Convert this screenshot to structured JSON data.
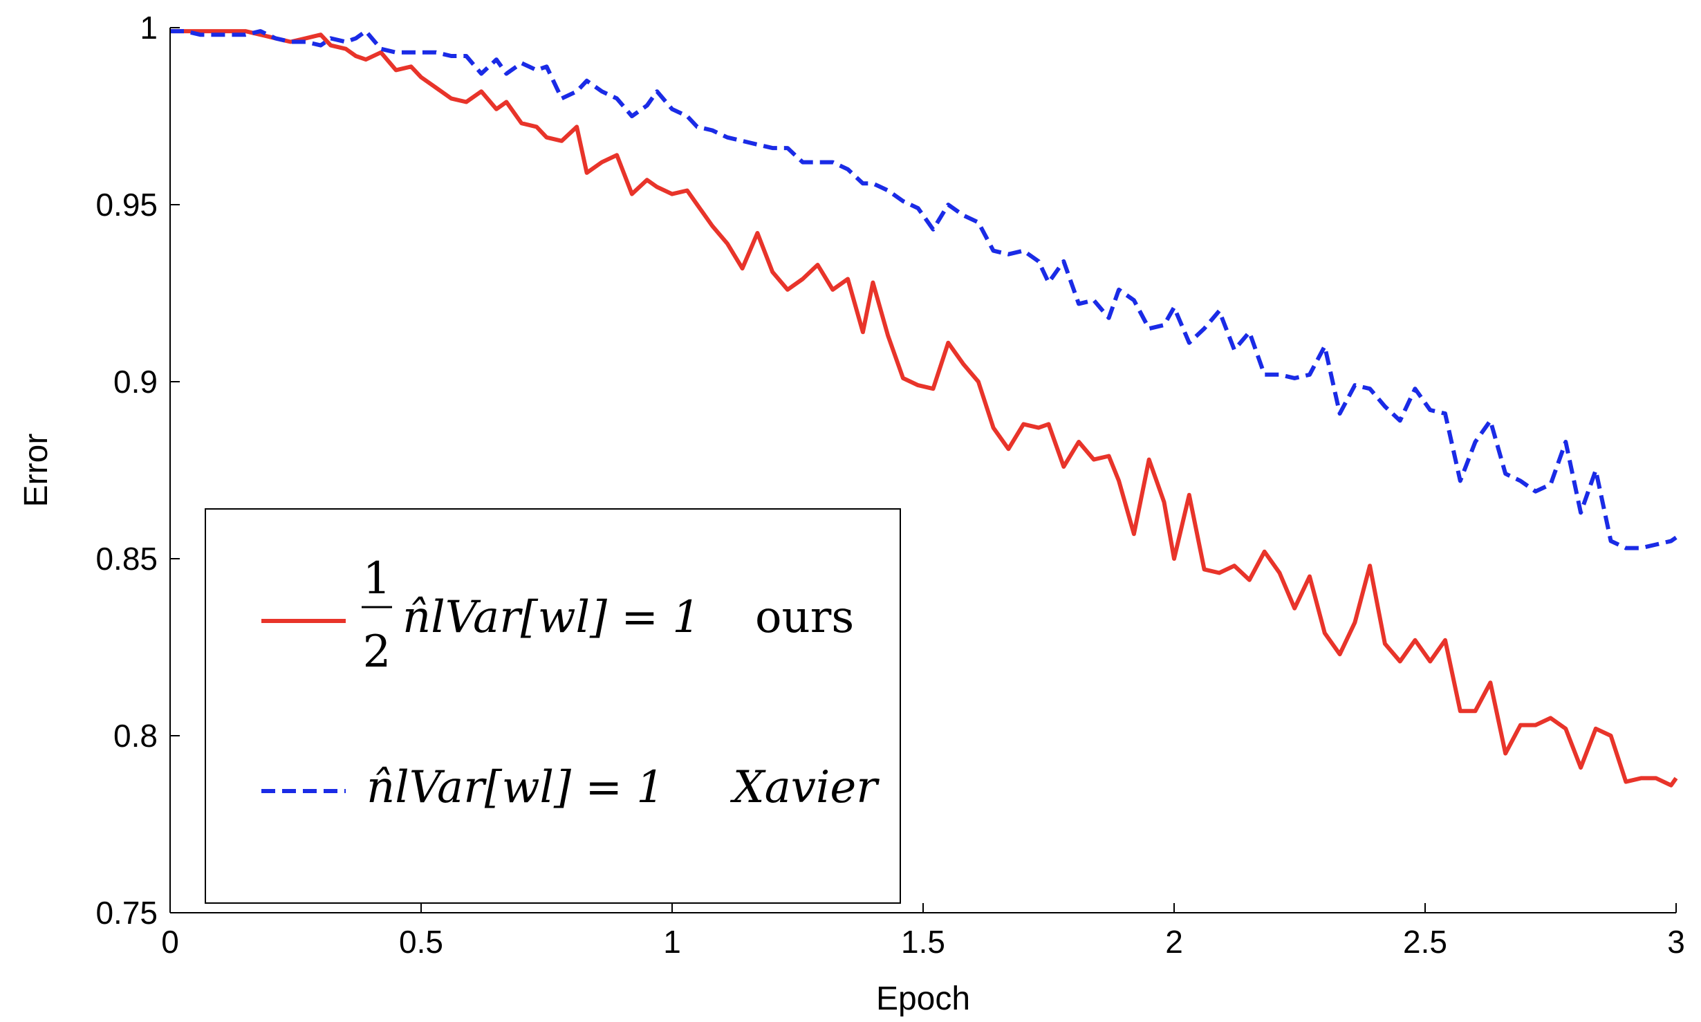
{
  "chart_data": {
    "type": "line",
    "xlabel": "Epoch",
    "ylabel": "Error",
    "xlim": [
      0,
      3
    ],
    "ylim": [
      0.75,
      1
    ],
    "xticks": [
      "0",
      "0.5",
      "1",
      "1.5",
      "2",
      "2.5",
      "3"
    ],
    "yticks": [
      "0.75",
      "0.8",
      "0.85",
      "0.9",
      "0.95",
      "1"
    ],
    "legend_position": "bottom-left",
    "grid": false,
    "series": [
      {
        "name": "1/2 n̂_l Var[w_l] = 1  ours",
        "legend": {
          "frac_num": "1",
          "frac_den": "2",
          "formula": "n̂lVar[wl] = 1",
          "suffix": "ours"
        },
        "color": "#e8342a",
        "dash": "solid",
        "x": [
          0,
          0.03,
          0.06,
          0.09,
          0.12,
          0.15,
          0.18,
          0.21,
          0.24,
          0.27,
          0.3,
          0.32,
          0.35,
          0.37,
          0.39,
          0.42,
          0.45,
          0.48,
          0.5,
          0.53,
          0.56,
          0.59,
          0.62,
          0.65,
          0.67,
          0.7,
          0.73,
          0.75,
          0.78,
          0.81,
          0.83,
          0.86,
          0.89,
          0.92,
          0.95,
          0.97,
          1.0,
          1.03,
          1.05,
          1.08,
          1.11,
          1.14,
          1.17,
          1.2,
          1.23,
          1.26,
          1.29,
          1.32,
          1.35,
          1.38,
          1.4,
          1.43,
          1.46,
          1.49,
          1.52,
          1.55,
          1.58,
          1.61,
          1.64,
          1.67,
          1.7,
          1.73,
          1.75,
          1.78,
          1.81,
          1.84,
          1.87,
          1.89,
          1.92,
          1.95,
          1.98,
          2.0,
          2.03,
          2.06,
          2.09,
          2.12,
          2.15,
          2.18,
          2.21,
          2.24,
          2.27,
          2.3,
          2.33,
          2.36,
          2.39,
          2.42,
          2.45,
          2.48,
          2.51,
          2.54,
          2.57,
          2.6,
          2.63,
          2.66,
          2.69,
          2.72,
          2.75,
          2.78,
          2.81,
          2.84,
          2.87,
          2.9,
          2.93,
          2.96,
          2.99,
          3.0
        ],
        "y": [
          0.999,
          0.999,
          0.999,
          0.999,
          0.999,
          0.999,
          0.998,
          0.997,
          0.996,
          0.997,
          0.998,
          0.995,
          0.994,
          0.992,
          0.991,
          0.993,
          0.988,
          0.989,
          0.986,
          0.983,
          0.98,
          0.979,
          0.982,
          0.977,
          0.979,
          0.973,
          0.972,
          0.969,
          0.968,
          0.972,
          0.959,
          0.962,
          0.964,
          0.953,
          0.957,
          0.955,
          0.953,
          0.954,
          0.95,
          0.944,
          0.939,
          0.932,
          0.942,
          0.931,
          0.926,
          0.929,
          0.933,
          0.926,
          0.929,
          0.914,
          0.928,
          0.913,
          0.901,
          0.899,
          0.898,
          0.911,
          0.905,
          0.9,
          0.887,
          0.881,
          0.888,
          0.887,
          0.888,
          0.876,
          0.883,
          0.878,
          0.879,
          0.872,
          0.857,
          0.878,
          0.866,
          0.85,
          0.868,
          0.847,
          0.846,
          0.848,
          0.844,
          0.852,
          0.846,
          0.836,
          0.845,
          0.829,
          0.823,
          0.832,
          0.848,
          0.826,
          0.821,
          0.827,
          0.821,
          0.827,
          0.807,
          0.807,
          0.815,
          0.795,
          0.803,
          0.803,
          0.805,
          0.802,
          0.791,
          0.802,
          0.8,
          0.787,
          0.788,
          0.788,
          0.786,
          0.788
        ]
      },
      {
        "name": "n̂_l Var[w_l] = 1  Xavier",
        "legend": {
          "frac_num": "",
          "frac_den": "",
          "formula": "n̂lVar[wl] = 1",
          "suffix": "Xavier"
        },
        "color": "#1a2be6",
        "dash": "dashed",
        "x": [
          0,
          0.03,
          0.06,
          0.09,
          0.12,
          0.15,
          0.18,
          0.21,
          0.24,
          0.27,
          0.3,
          0.32,
          0.35,
          0.37,
          0.39,
          0.42,
          0.45,
          0.48,
          0.5,
          0.53,
          0.56,
          0.59,
          0.62,
          0.65,
          0.67,
          0.7,
          0.73,
          0.75,
          0.78,
          0.81,
          0.83,
          0.86,
          0.89,
          0.92,
          0.95,
          0.97,
          1.0,
          1.03,
          1.05,
          1.08,
          1.11,
          1.14,
          1.17,
          1.2,
          1.23,
          1.26,
          1.29,
          1.32,
          1.35,
          1.38,
          1.4,
          1.43,
          1.46,
          1.49,
          1.52,
          1.55,
          1.58,
          1.61,
          1.64,
          1.67,
          1.7,
          1.73,
          1.75,
          1.78,
          1.81,
          1.84,
          1.87,
          1.89,
          1.92,
          1.95,
          1.98,
          2.0,
          2.03,
          2.06,
          2.09,
          2.12,
          2.15,
          2.18,
          2.21,
          2.24,
          2.27,
          2.3,
          2.33,
          2.36,
          2.39,
          2.42,
          2.45,
          2.48,
          2.51,
          2.54,
          2.57,
          2.6,
          2.63,
          2.66,
          2.69,
          2.72,
          2.75,
          2.78,
          2.81,
          2.84,
          2.87,
          2.9,
          2.93,
          2.96,
          2.99,
          3.0
        ],
        "y": [
          0.999,
          0.999,
          0.998,
          0.998,
          0.998,
          0.998,
          0.999,
          0.997,
          0.996,
          0.996,
          0.995,
          0.997,
          0.996,
          0.997,
          0.999,
          0.994,
          0.993,
          0.993,
          0.993,
          0.993,
          0.992,
          0.992,
          0.987,
          0.991,
          0.987,
          0.99,
          0.988,
          0.989,
          0.98,
          0.982,
          0.985,
          0.982,
          0.98,
          0.975,
          0.978,
          0.982,
          0.977,
          0.975,
          0.972,
          0.971,
          0.969,
          0.968,
          0.967,
          0.966,
          0.966,
          0.962,
          0.962,
          0.962,
          0.96,
          0.956,
          0.956,
          0.954,
          0.951,
          0.949,
          0.943,
          0.95,
          0.947,
          0.945,
          0.937,
          0.936,
          0.937,
          0.934,
          0.928,
          0.934,
          0.922,
          0.923,
          0.918,
          0.926,
          0.923,
          0.915,
          0.916,
          0.921,
          0.911,
          0.915,
          0.92,
          0.909,
          0.914,
          0.902,
          0.902,
          0.901,
          0.902,
          0.91,
          0.891,
          0.899,
          0.898,
          0.893,
          0.889,
          0.898,
          0.892,
          0.891,
          0.872,
          0.883,
          0.889,
          0.874,
          0.872,
          0.869,
          0.871,
          0.883,
          0.863,
          0.875,
          0.855,
          0.853,
          0.853,
          0.854,
          0.855,
          0.856
        ]
      }
    ]
  }
}
